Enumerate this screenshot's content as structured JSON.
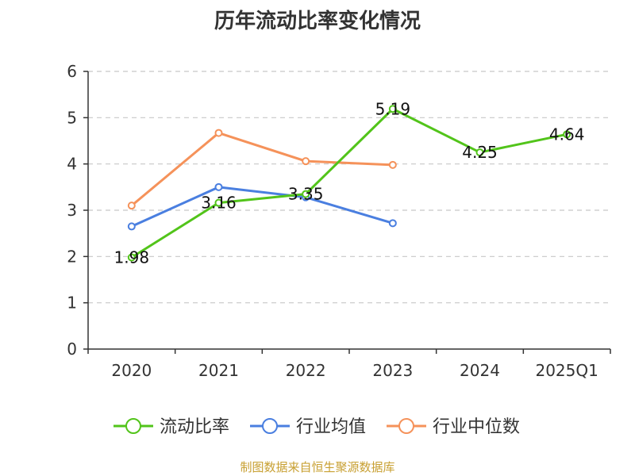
{
  "title": "历年流动比率变化情况",
  "source": "制图数据来自恒生聚源数据库",
  "chart_data": {
    "type": "line",
    "title": "历年流动比率变化情况",
    "categories": [
      "2020",
      "2021",
      "2022",
      "2023",
      "2024",
      "2025Q1"
    ],
    "ylim": [
      0,
      6
    ],
    "yticks": [
      "0",
      "1",
      "2",
      "3",
      "4",
      "5",
      "6"
    ],
    "grid": true,
    "legend_position": "bottom",
    "series": [
      {
        "name": "流动比率",
        "color": "#52c41a",
        "values": [
          1.98,
          3.16,
          3.35,
          5.19,
          4.25,
          4.64
        ],
        "labels": [
          "1.98",
          "3.16",
          "3.35",
          "5.19",
          "4.25",
          "4.64"
        ]
      },
      {
        "name": "行业均值",
        "color": "#4a7fe0",
        "values": [
          2.65,
          3.5,
          3.28,
          2.72,
          null,
          null
        ]
      },
      {
        "name": "行业中位数",
        "color": "#f5925a",
        "values": [
          3.1,
          4.67,
          4.06,
          3.98,
          null,
          null
        ]
      }
    ]
  }
}
